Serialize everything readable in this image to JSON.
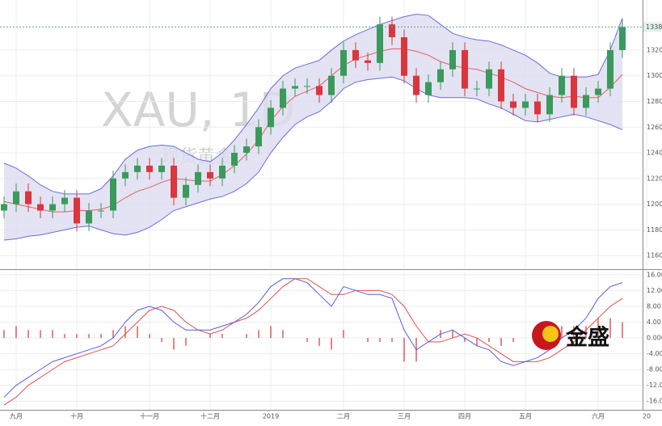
{
  "chart_data": [
    {
      "type": "candlestick",
      "annotations": [
        "XAU, 1D",
        "现货黄金"
      ],
      "up_color": "#3a9a5b",
      "down_color": "#d9363e",
      "open": [
        1195,
        1200,
        1210,
        1200,
        1195,
        1200,
        1205,
        1185,
        1195,
        1195,
        1220,
        1225,
        1230,
        1225,
        1230,
        1205,
        1215,
        1225,
        1220,
        1230,
        1240,
        1245,
        1260,
        1275,
        1290,
        1292,
        1292,
        1285,
        1300,
        1320,
        1312,
        1310,
        1340,
        1330,
        1300,
        1285,
        1295,
        1305,
        1320,
        1290,
        1290,
        1305,
        1280,
        1275,
        1280,
        1270,
        1285,
        1300,
        1275,
        1285,
        1290,
        1320,
        null,
        null
      ],
      "high": [
        1206,
        1216,
        1216,
        1206,
        1206,
        1211,
        1211,
        1201,
        1201,
        1226,
        1231,
        1236,
        1236,
        1236,
        1236,
        1221,
        1231,
        1231,
        1236,
        1246,
        1251,
        1266,
        1281,
        1296,
        1298,
        1298,
        1298,
        1306,
        1326,
        1326,
        1318,
        1346,
        1346,
        1336,
        1306,
        1301,
        1311,
        1326,
        1326,
        1296,
        1311,
        1311,
        1286,
        1286,
        1286,
        1291,
        1306,
        1306,
        1291,
        1296,
        1326,
        1344,
        null,
        null
      ],
      "low": [
        1189,
        1194,
        1194,
        1189,
        1189,
        1194,
        1179,
        1179,
        1189,
        1189,
        1214,
        1219,
        1219,
        1219,
        1199,
        1199,
        1209,
        1214,
        1214,
        1224,
        1234,
        1239,
        1254,
        1269,
        1284,
        1286,
        1279,
        1279,
        1294,
        1306,
        1304,
        1304,
        1324,
        1294,
        1279,
        1279,
        1289,
        1299,
        1284,
        1284,
        1284,
        1274,
        1269,
        1269,
        1264,
        1264,
        1279,
        1269,
        1269,
        1279,
        1284,
        1314,
        null,
        null
      ],
      "close": [
        1200,
        1210,
        1200,
        1195,
        1200,
        1205,
        1185,
        1195,
        1195,
        1220,
        1225,
        1230,
        1225,
        1230,
        1205,
        1215,
        1225,
        1220,
        1230,
        1240,
        1245,
        1260,
        1275,
        1290,
        1292,
        1292,
        1285,
        1300,
        1320,
        1312,
        1310,
        1340,
        1330,
        1300,
        1285,
        1295,
        1305,
        1320,
        1290,
        1290,
        1305,
        1280,
        1275,
        1280,
        1270,
        1285,
        1300,
        1275,
        1285,
        1290,
        1320,
        1338,
        null,
        null
      ],
      "bands": {
        "band_color": "#6b6bdc",
        "fill_color": "#dcdcf0",
        "middle_color": "#e06060",
        "upper": [
          1232,
          1228,
          1222,
          1215,
          1210,
          1208,
          1208,
          1208,
          1212,
          1222,
          1235,
          1242,
          1245,
          1246,
          1245,
          1240,
          1235,
          1233,
          1240,
          1250,
          1262,
          1275,
          1290,
          1300,
          1306,
          1309,
          1312,
          1320,
          1327,
          1332,
          1336,
          1340,
          1343,
          1346,
          1348,
          1347,
          1340,
          1333,
          1330,
          1328,
          1327,
          1324,
          1320,
          1316,
          1310,
          1302,
          1299,
          1299,
          1299,
          1301,
          1320,
          1345,
          null,
          null
        ],
        "middle": [
          1202,
          1200,
          1198,
          1196,
          1194,
          1194,
          1195,
          1195,
          1196,
          1199,
          1205,
          1210,
          1213,
          1217,
          1220,
          1219,
          1218,
          1218,
          1223,
          1230,
          1239,
          1250,
          1265,
          1276,
          1284,
          1288,
          1292,
          1300,
          1308,
          1313,
          1316,
          1319,
          1321,
          1321,
          1319,
          1316,
          1311,
          1308,
          1306,
          1305,
          1302,
          1299,
          1295,
          1290,
          1287,
          1284,
          1283,
          1284,
          1283,
          1283,
          1291,
          1301,
          null,
          null
        ],
        "lower": [
          1172,
          1173,
          1175,
          1176,
          1178,
          1180,
          1182,
          1183,
          1180,
          1177,
          1176,
          1178,
          1182,
          1188,
          1195,
          1198,
          1201,
          1204,
          1206,
          1210,
          1216,
          1225,
          1240,
          1252,
          1262,
          1268,
          1272,
          1280,
          1290,
          1295,
          1297,
          1298,
          1299,
          1296,
          1290,
          1285,
          1283,
          1283,
          1283,
          1282,
          1278,
          1275,
          1270,
          1265,
          1264,
          1266,
          1268,
          1270,
          1268,
          1265,
          1262,
          1258,
          null,
          null
        ]
      },
      "last_price": {
        "value": 1338,
        "label": "1338."
      },
      "ylim": [
        1150,
        1359
      ],
      "yticks": [
        1160,
        1180,
        1200,
        1220,
        1240,
        1260,
        1280,
        1300,
        1320
      ],
      "grid": true
    },
    {
      "type": "macd",
      "categories": [
        null,
        "九月",
        null,
        null,
        null,
        null,
        "十月",
        null,
        null,
        null,
        null,
        null,
        "十一月",
        null,
        null,
        null,
        null,
        "十二月",
        null,
        null,
        null,
        null,
        "2019",
        null,
        null,
        null,
        null,
        null,
        "二月",
        null,
        null,
        null,
        null,
        "三月",
        null,
        null,
        null,
        null,
        "四月",
        null,
        null,
        null,
        null,
        "五月",
        null,
        null,
        null,
        null,
        null,
        "六月",
        null,
        null,
        null,
        "20"
      ],
      "dif": {
        "color": "#5b5be0",
        "values": [
          -15,
          -12,
          -10,
          -8,
          -6,
          -5,
          -4,
          -3,
          -2,
          0,
          4,
          7,
          8,
          7,
          4,
          2,
          2,
          2,
          3,
          4,
          6,
          9,
          13,
          15,
          15,
          14,
          11,
          8,
          13,
          12,
          11,
          11,
          10,
          2,
          -3,
          -1,
          1,
          2,
          0,
          -2,
          -3,
          -6,
          -7,
          -6,
          -5,
          -3,
          0,
          2,
          5,
          10,
          13,
          14,
          null,
          null
        ]
      },
      "dea": {
        "color": "#e05050",
        "values": [
          -17,
          -15,
          -12,
          -10,
          -8,
          -6,
          -5,
          -4,
          -3,
          -2,
          1,
          4,
          7,
          8,
          7,
          4,
          2,
          1,
          2,
          4,
          5,
          7,
          10,
          13,
          15,
          15,
          13,
          11,
          11,
          12,
          12,
          12,
          11,
          8,
          3,
          -1,
          -1,
          0,
          1,
          0,
          -2,
          -4,
          -6,
          -6,
          -6,
          -5,
          -3,
          -1,
          2,
          5,
          8,
          10,
          null,
          null
        ]
      },
      "histogram": {
        "color": "#e05050",
        "values": [
          2,
          3,
          2,
          2,
          2,
          1,
          1,
          1,
          1,
          2,
          3,
          3,
          1,
          -1,
          -3,
          -2,
          0,
          1,
          1,
          0,
          1,
          2,
          3,
          2,
          0,
          -1,
          -2,
          -3,
          2,
          0,
          -1,
          -1,
          -1,
          -6,
          -6,
          0,
          2,
          2,
          -1,
          -2,
          -1,
          -2,
          -1,
          0,
          1,
          2,
          3,
          3,
          3,
          5,
          5,
          4,
          null,
          null
        ]
      },
      "logo_text": "金盛",
      "ylim": [
        -17.8,
        17
      ],
      "yticks": [
        {
          "value": 16,
          "label": "16.00"
        },
        {
          "value": 12,
          "label": "12.00"
        },
        {
          "value": 8,
          "label": "8.00"
        },
        {
          "value": 4,
          "label": "4.00"
        },
        {
          "value": 0,
          "label": "0.000"
        },
        {
          "value": -4,
          "label": "-4.00"
        },
        {
          "value": -8,
          "label": "-8.00"
        },
        {
          "value": -12,
          "label": "-12.0"
        },
        {
          "value": -16,
          "label": "-16.0"
        }
      ],
      "grid": true
    }
  ]
}
